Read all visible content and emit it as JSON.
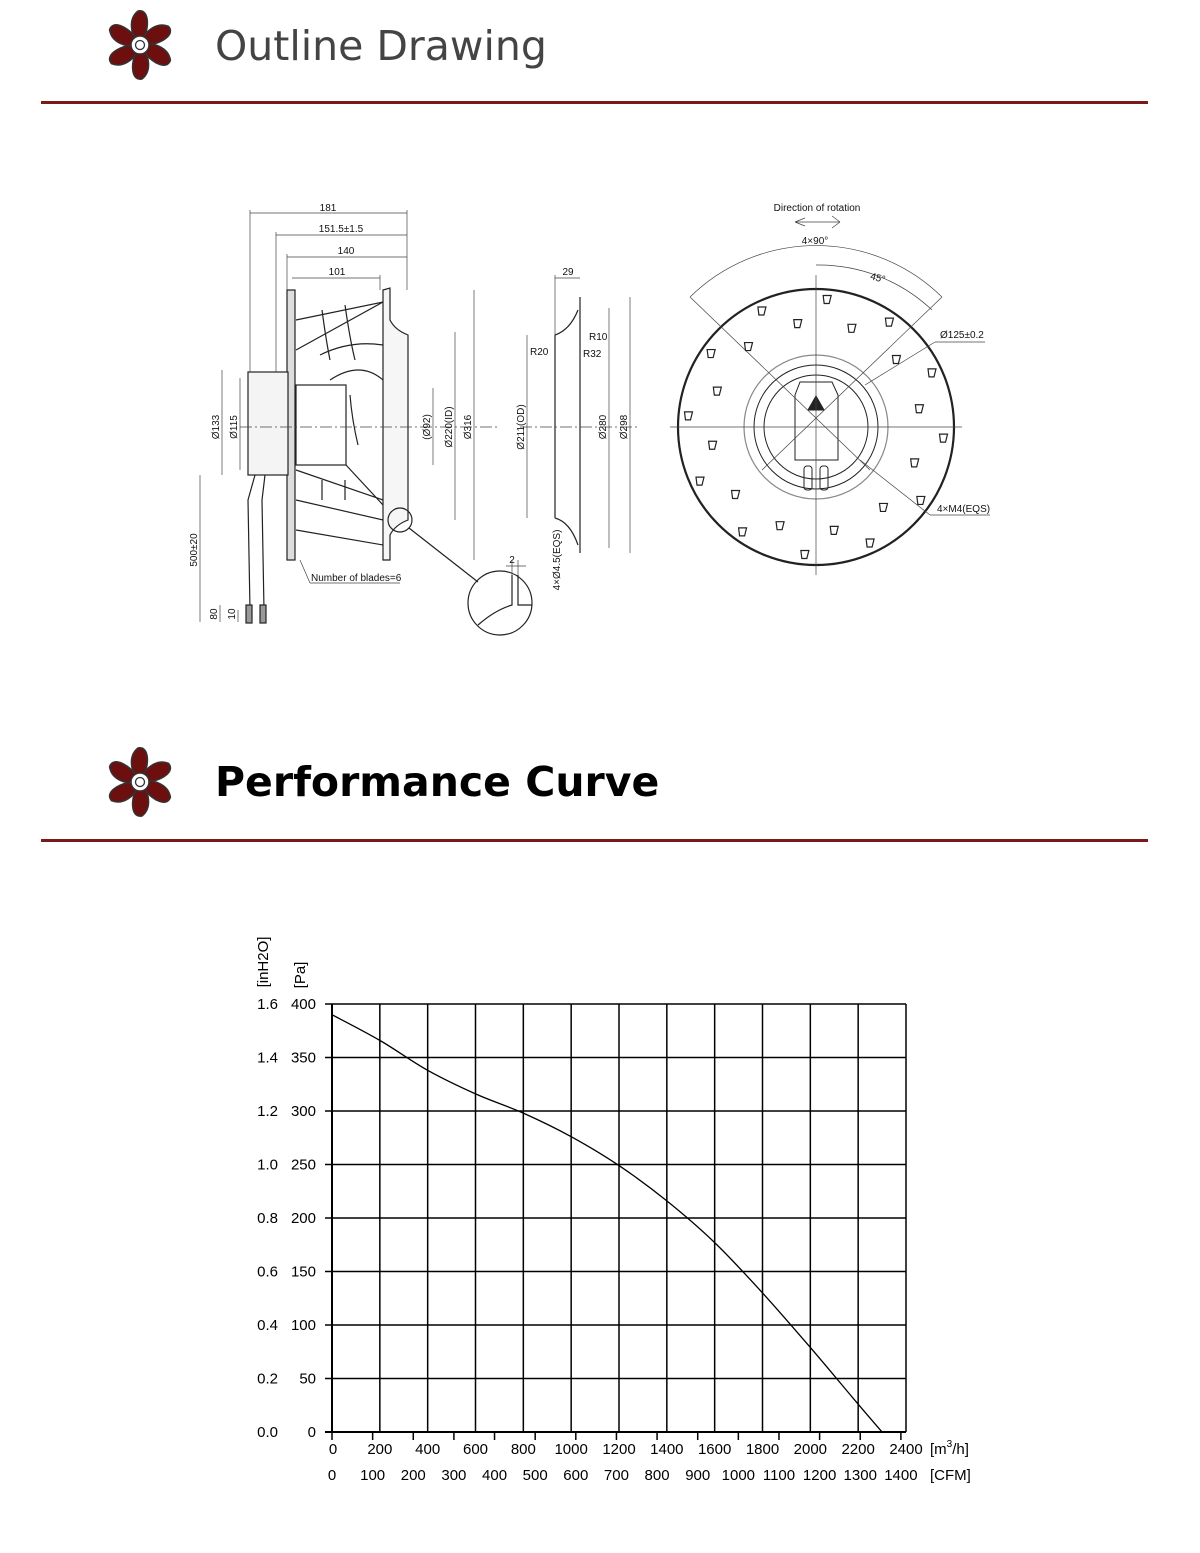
{
  "sections": {
    "outline": {
      "title": "Outline Drawing"
    },
    "performance": {
      "title": "Performance Curve"
    }
  },
  "colors": {
    "accent": "#7b1a1a",
    "logo_fill": "#6e0f0f"
  },
  "icons": {
    "logo": "fan-blade-icon"
  },
  "drawing": {
    "side_view": {
      "dim_181": "181",
      "dim_151": "151.5±1.5",
      "dim_140": "140",
      "dim_101": "101",
      "dim_133": "Ø133",
      "dim_115": "Ø115",
      "dim_92": "(Ø92)",
      "dim_220": "Ø220(ID)",
      "dim_316": "Ø316",
      "dim_500": "500±20",
      "dim_80": "80",
      "dim_10": "10",
      "blades": "Number of blades=6",
      "dim_2": "2"
    },
    "ring_view": {
      "dim_29": "29",
      "r10": "R10",
      "r20": "R20",
      "r32": "R32",
      "dim_211": "Ø211(OD)",
      "dim_280": "Ø280",
      "dim_298": "Ø298",
      "holes": "4×Ø4.5(EQS)"
    },
    "front_view": {
      "rotation": "Direction of rotation",
      "angle_4x90": "4×90°",
      "angle_45": "45°",
      "dim_125": "Ø125±0.2",
      "screws": "4×M4(EQS)"
    }
  },
  "chart_data": {
    "type": "line",
    "x_unit_label": "[m³/h]",
    "x_unit_base": "[m",
    "x_unit_sup": "3",
    "x_unit_tail": "/h]",
    "x2_unit_label": "[CFM]",
    "y_unit_label": "[Pa]",
    "y2_unit_label": "[inH2O]",
    "xlim": [
      0,
      2400
    ],
    "ylim": [
      0,
      400
    ],
    "x_ticks": [
      "0",
      "200",
      "400",
      "600",
      "800",
      "1000",
      "1200",
      "1400",
      "1600",
      "1800",
      "2000",
      "2200",
      "2400"
    ],
    "x2_ticks": [
      "0",
      "100",
      "200",
      "300",
      "400",
      "500",
      "600",
      "700",
      "800",
      "900",
      "1000",
      "1100",
      "1200",
      "1300",
      "1400"
    ],
    "y_ticks": [
      "0",
      "50",
      "100",
      "150",
      "200",
      "250",
      "300",
      "350",
      "400"
    ],
    "y2_ticks": [
      "0.0",
      "0.2",
      "0.4",
      "0.6",
      "0.8",
      "1.0",
      "1.2",
      "1.4",
      "1.6"
    ],
    "grid": true,
    "series": [
      {
        "x": [
          0,
          200,
          400,
          600,
          800,
          1000,
          1200,
          1400,
          1600,
          1800,
          2000,
          2200,
          2300
        ],
        "y": [
          390,
          366,
          338,
          316,
          298,
          276,
          249,
          216,
          177,
          130,
          79,
          26,
          0
        ]
      }
    ]
  }
}
